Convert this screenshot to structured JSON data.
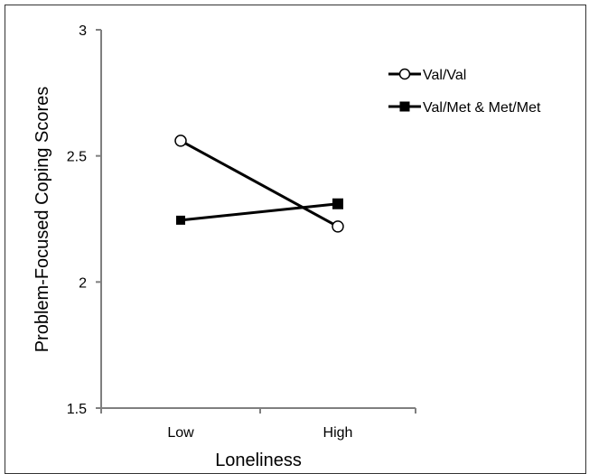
{
  "chart_data": {
    "type": "line",
    "title": "",
    "xlabel": "Loneliness",
    "ylabel": "Problem-Focused Coping Scores",
    "categories": [
      "Low",
      "High"
    ],
    "ylim": [
      1.5,
      3
    ],
    "yticks": [
      "1.5",
      "2",
      "2.5",
      "3"
    ],
    "grid": false,
    "legend_position": "top-right",
    "series": [
      {
        "name": "Val/Val",
        "values": [
          2.56,
          2.22
        ],
        "marker": "open-circle",
        "color": "#000000"
      },
      {
        "name": "Val/Met & Met/Met",
        "values": [
          2.245,
          2.31
        ],
        "marker": "filled-square",
        "color": "#000000"
      }
    ]
  }
}
